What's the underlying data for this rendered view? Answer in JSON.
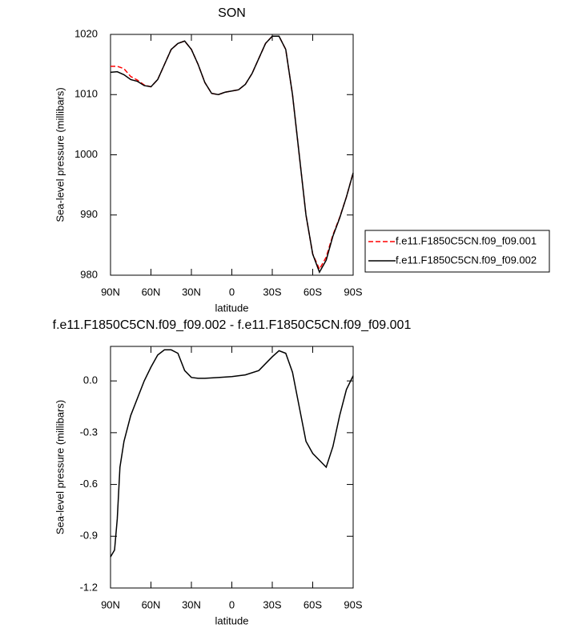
{
  "chart_data": [
    {
      "type": "line",
      "title": "SON",
      "x_label": "latitude",
      "y_label": "Sea-level pressure (millibars)",
      "x": [
        90,
        85,
        80,
        75,
        70,
        65,
        60,
        55,
        50,
        45,
        40,
        35,
        30,
        25,
        20,
        15,
        10,
        5,
        0,
        -5,
        -10,
        -15,
        -20,
        -25,
        -30,
        -35,
        -40,
        -45,
        -50,
        -55,
        -60,
        -65,
        -70,
        -75,
        -80,
        -85,
        -90
      ],
      "series": [
        {
          "name": "f.e11.F1850C5CN.f09_f09.001",
          "color": "#ff0000",
          "line_style": "dashed",
          "values": [
            1014.7,
            1014.7,
            1014.3,
            1013,
            1012.4,
            1011.6,
            1011.3,
            1012.5,
            1015,
            1017.5,
            1018.5,
            1018.9,
            1017.5,
            1015,
            1012,
            1010.2,
            1010,
            1010.4,
            1010.6,
            1010.8,
            1011.7,
            1013.5,
            1016,
            1018.5,
            1019.7,
            1019.7,
            1017.5,
            1010,
            1000,
            990,
            983.5,
            981,
            983,
            986.7,
            989.6,
            993,
            997
          ]
        },
        {
          "name": "f.e11.F1850C5CN.f09_f09.002",
          "color": "#000000",
          "line_style": "solid",
          "values": [
            1013.7,
            1013.8,
            1013.3,
            1012.5,
            1012.2,
            1011.5,
            1011.3,
            1012.5,
            1015,
            1017.5,
            1018.5,
            1018.9,
            1017.5,
            1015,
            1012,
            1010.2,
            1010,
            1010.4,
            1010.6,
            1010.8,
            1011.7,
            1013.5,
            1016,
            1018.5,
            1019.7,
            1019.7,
            1017.5,
            1010,
            1000,
            990,
            983.5,
            980.5,
            982.5,
            986.5,
            989.5,
            993,
            997
          ]
        }
      ],
      "xlim": [
        90,
        -90
      ],
      "xticks": [
        {
          "value": 90,
          "label": "90N"
        },
        {
          "value": 60,
          "label": "60N"
        },
        {
          "value": 30,
          "label": "30N"
        },
        0,
        {
          "value": -30,
          "label": "30S"
        },
        {
          "value": -60,
          "label": "60S"
        },
        {
          "value": -90,
          "label": "90S"
        }
      ],
      "ylim": [
        980,
        1020
      ],
      "yticks": [
        980,
        990,
        1000,
        1010,
        1020
      ],
      "legend": "right"
    },
    {
      "type": "line",
      "title": "f.e11.F1850C5CN.f09_f09.002 - f.e11.F1850C5CN.f09_f09.001",
      "x_label": "latitude",
      "y_label": "Sea-level pressure (millibars)",
      "x": [
        90,
        87,
        85,
        83,
        80,
        75,
        70,
        65,
        60,
        55,
        50,
        45,
        40,
        35,
        30,
        25,
        20,
        10,
        0,
        -10,
        -20,
        -25,
        -30,
        -35,
        -40,
        -45,
        -50,
        -55,
        -60,
        -65,
        -70,
        -75,
        -80,
        -85,
        -90
      ],
      "series": [
        {
          "color": "#000000",
          "line_style": "solid",
          "values": [
            -1.02,
            -0.98,
            -0.8,
            -0.5,
            -0.35,
            -0.2,
            -0.1,
            0,
            0.08,
            0.15,
            0.18,
            0.18,
            0.16,
            0.06,
            0.02,
            0.015,
            0.015,
            0.02,
            0.025,
            0.035,
            0.06,
            0.1,
            0.14,
            0.175,
            0.16,
            0.05,
            -0.15,
            -0.35,
            -0.42,
            -0.46,
            -0.5,
            -0.38,
            -0.2,
            -0.05,
            0.03
          ]
        }
      ],
      "xlim": [
        90,
        -90
      ],
      "xticks": [
        {
          "value": 90,
          "label": "90N"
        },
        {
          "value": 60,
          "label": "60N"
        },
        {
          "value": 30,
          "label": "30N"
        },
        0,
        {
          "value": -30,
          "label": "30S"
        },
        {
          "value": -60,
          "label": "60S"
        },
        {
          "value": -90,
          "label": "90S"
        }
      ],
      "ylim": [
        -1.2,
        0.2
      ],
      "yticks": [
        {
          "value": 0,
          "label": "0.0"
        },
        -0.3,
        -0.6,
        -0.9,
        -1.2
      ]
    }
  ]
}
